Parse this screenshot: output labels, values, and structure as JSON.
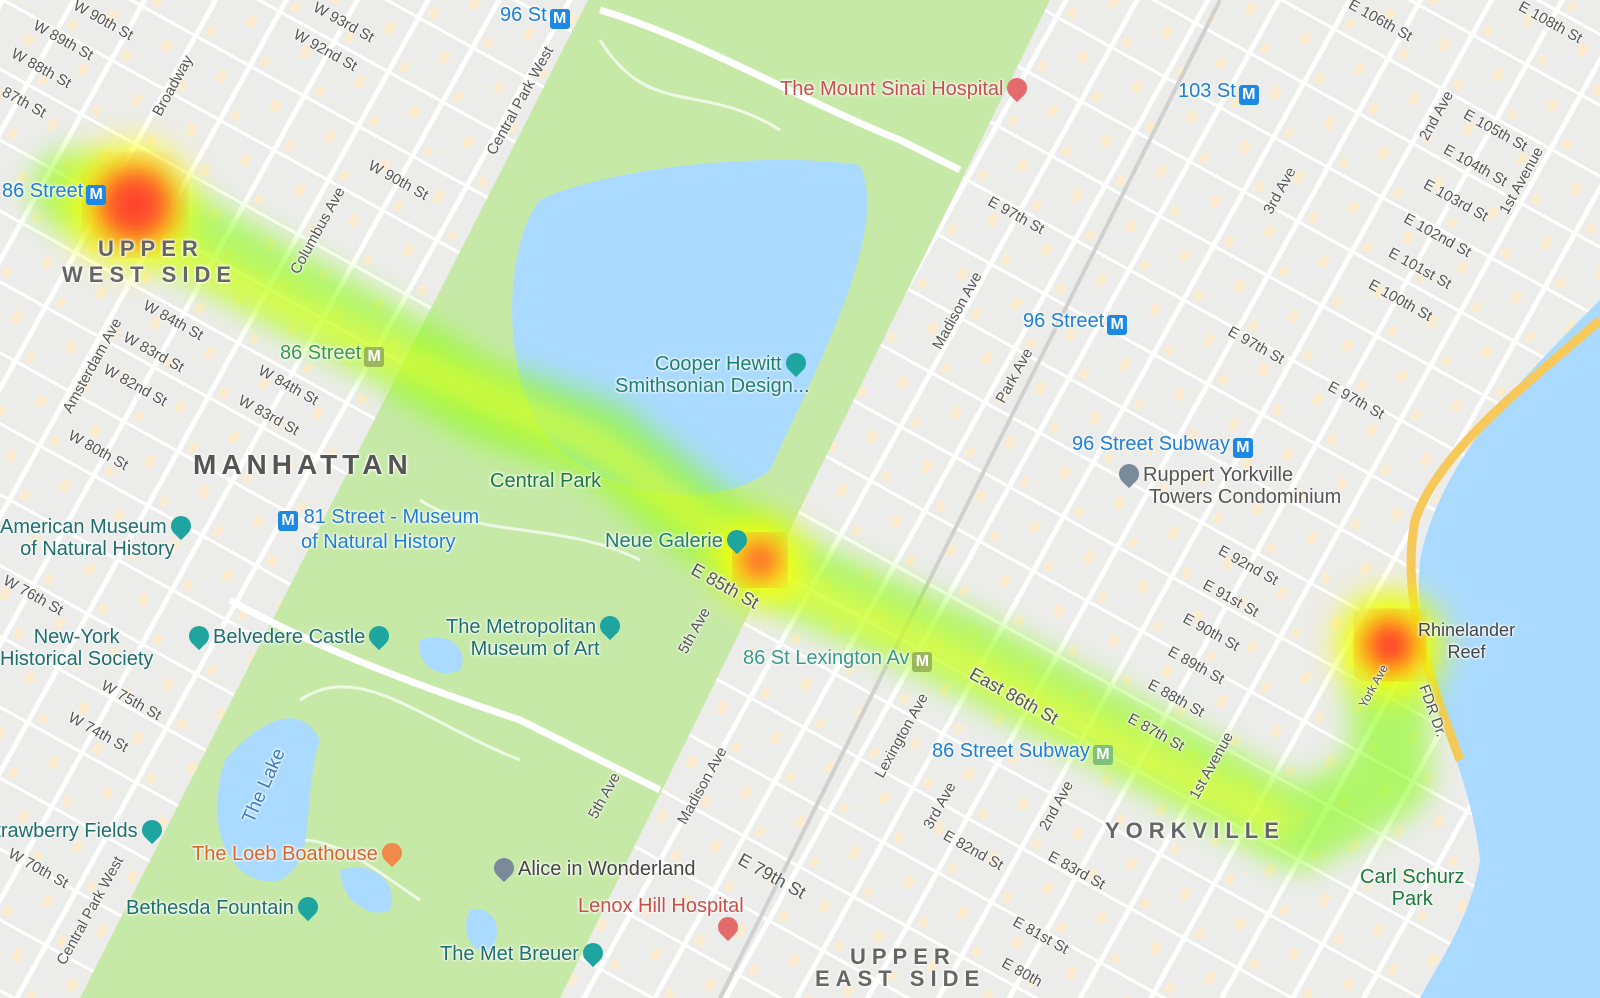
{
  "colors": {
    "park": "#c7e9a8",
    "water": "#aadaff",
    "road": "#ffffff",
    "heat_low": "#7fff00",
    "heat_mid": "#ffff00",
    "heat_high": "#ff2020"
  },
  "map": {
    "heatmap_layer": true
  },
  "neighborhoods": [
    "UPPER",
    "WEST SIDE",
    "MANHATTAN",
    "YORKVILLE",
    "UPPER",
    "EAST SIDE"
  ],
  "streets": [
    "W 90th St",
    "W 89th St",
    "W 88th St",
    "87th St",
    "W 93rd St",
    "W 92nd St",
    "W 90th St",
    "Broadway",
    "Columbus Ave",
    "Amsterdam Ave",
    "W 84th St",
    "W 83rd St",
    "W 82nd St",
    "W 80th St",
    "W 84th St",
    "W 83rd St",
    "Central Park West",
    "E 97th St",
    "Madison Ave",
    "Park Ave",
    "3rd Ave",
    "2nd Ave",
    "1st Avenue",
    "E 106th St",
    "E 105th St",
    "E 104th St",
    "E 103rd St",
    "E 102nd St",
    "E 101st St",
    "E 100th St",
    "E 97th St",
    "E 97th St",
    "E 92nd St",
    "E 91st St",
    "E 90th St",
    "E 89th St",
    "E 88th St",
    "E 87th St",
    "East 86th St",
    "E 85th St",
    "5th Ave",
    "Lexington Ave",
    "3rd Ave",
    "2nd Ave",
    "1st Avenue",
    "York Ave",
    "FDR Dr.",
    "E 83rd St",
    "E 82nd St",
    "E 81st St",
    "E 79th St",
    "5th Ave",
    "Madison Ave",
    "W 76th St",
    "W 75th St",
    "W 74th St",
    "W 70th St",
    "Central Park West",
    "The Lake",
    "E 108th St",
    "E 80th"
  ],
  "transit": [
    "96 St",
    "103 St",
    "86 Street",
    "86 Street",
    "96 Street",
    "96 Street Subway",
    "81 Street - Museum",
    "of Natural History",
    "86 St Lexington Av",
    "86 Street Subway"
  ],
  "places": [
    "The Mount Sinai Hospital",
    "Cooper Hewitt",
    "Smithsonian Design...",
    "Central Park",
    "Neue Galerie",
    "American Museum",
    "of Natural History",
    "Ruppert Yorkville",
    "Towers Condominium",
    "New-York",
    "Historical Society",
    "Belvedere Castle",
    "The Metropolitan",
    "Museum of Art",
    "Rhinelander",
    "Reef",
    "Strawberry Fields",
    "The Loeb Boathouse",
    "Alice in Wonderland",
    "Lenox Hill Hospital",
    "Bethesda Fountain",
    "The Met Breuer",
    "Carl Schurz",
    "Park"
  ],
  "icons": {
    "metro": "M",
    "hospital": "H"
  }
}
